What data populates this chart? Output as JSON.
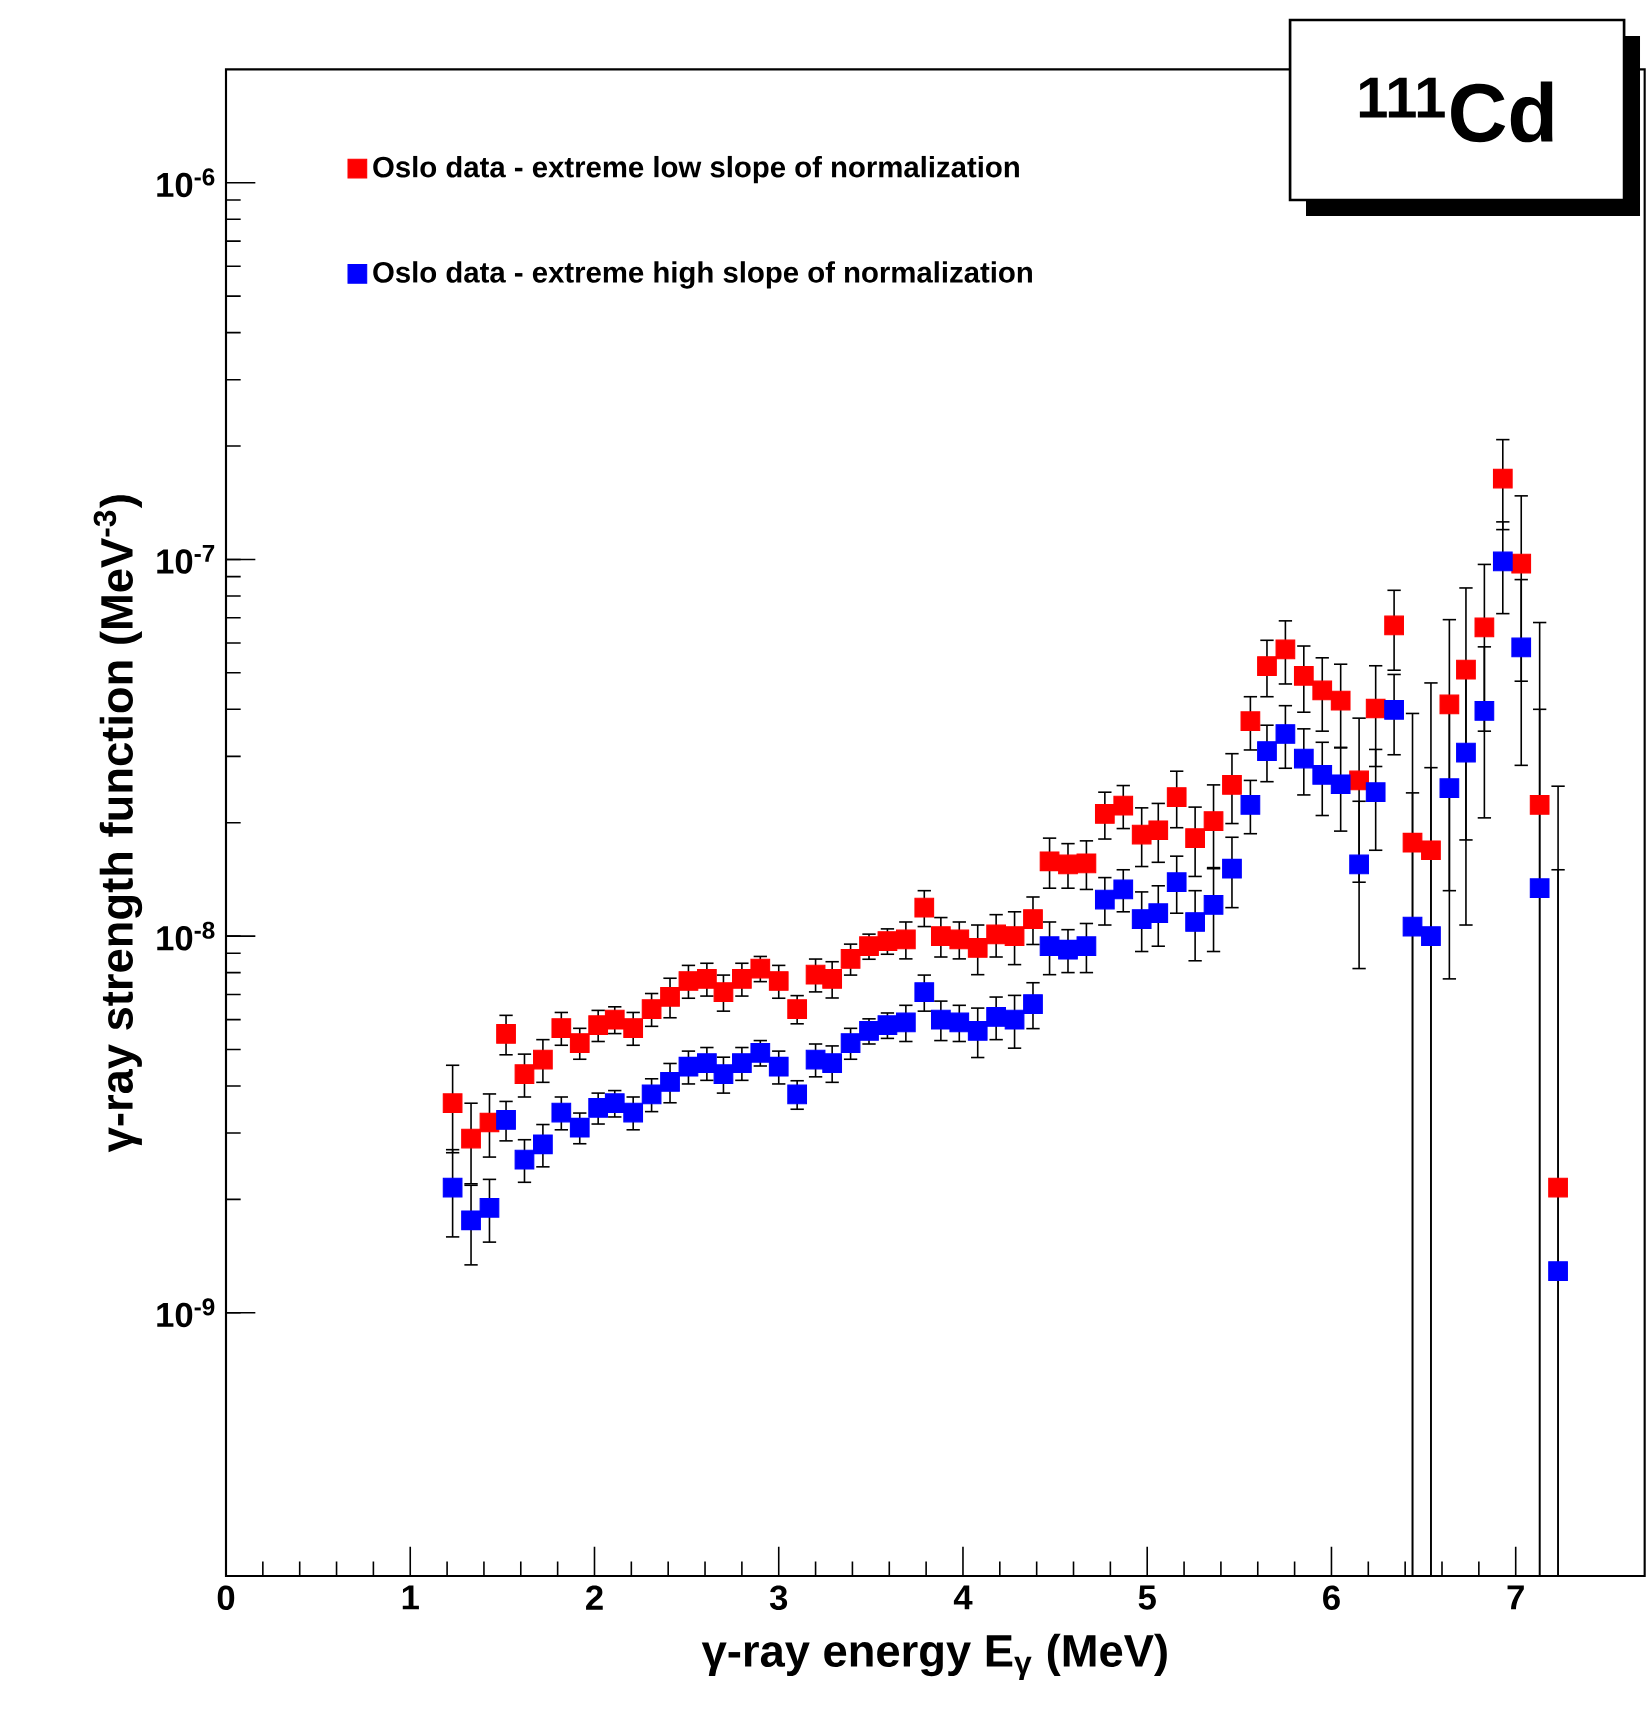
{
  "chart_data": {
    "type": "scatter",
    "title": "$^{111}$Cd",
    "xlabel": "γ-ray energy E$_{γ}$ (MeV)",
    "ylabel": "γ-ray strength function (MeV$^{-3}$)",
    "x": [
      1.23,
      1.33,
      1.43,
      1.52,
      1.62,
      1.72,
      1.82,
      1.92,
      2.02,
      2.11,
      2.21,
      2.31,
      2.41,
      2.51,
      2.61,
      2.7,
      2.8,
      2.9,
      3.0,
      3.1,
      3.2,
      3.29,
      3.39,
      3.49,
      3.59,
      3.69,
      3.79,
      3.88,
      3.98,
      4.08,
      4.18,
      4.28,
      4.38,
      4.47,
      4.57,
      4.67,
      4.77,
      4.87,
      4.97,
      5.06,
      5.16,
      5.26,
      5.36,
      5.46,
      5.56,
      5.65,
      5.75,
      5.85,
      5.95,
      6.05,
      6.15,
      6.24,
      6.34,
      6.44,
      6.54,
      6.64,
      6.73,
      6.83,
      6.93,
      7.03,
      7.13,
      7.23
    ],
    "series": [
      {
        "name": "Oslo data - extreme low slope of normalization",
        "color": "#ff0000",
        "values": [
          3.6e-09,
          2.9e-09,
          3.2e-09,
          5.5e-09,
          4.3e-09,
          4.7e-09,
          5.7e-09,
          5.2e-09,
          5.8e-09,
          6e-09,
          5.7e-09,
          6.4e-09,
          6.9e-09,
          7.6e-09,
          7.7e-09,
          7.1e-09,
          7.7e-09,
          8.2e-09,
          7.6e-09,
          6.4e-09,
          7.9e-09,
          7.7e-09,
          8.7e-09,
          9.4e-09,
          9.7e-09,
          9.8e-09,
          1.19e-08,
          1e-08,
          9.8e-09,
          9.3e-09,
          1.01e-08,
          1e-08,
          1.11e-08,
          1.58e-08,
          1.55e-08,
          1.56e-08,
          2.11e-08,
          2.22e-08,
          1.86e-08,
          1.91e-08,
          2.34e-08,
          1.82e-08,
          2.02e-08,
          2.52e-08,
          3.72e-08,
          5.21e-08,
          5.77e-08,
          4.91e-08,
          4.49e-08,
          4.22e-08,
          2.59e-08,
          4.02e-08,
          6.68e-08,
          1.77e-08,
          1.69e-08,
          4.12e-08,
          5.1e-08,
          6.6e-08,
          1.64e-07,
          9.75e-08,
          2.23e-08,
          2.15e-09
        ],
        "errors": [
          9.4e-10,
          7e-10,
          6.1e-10,
          6.6e-10,
          5.6e-10,
          6.1e-10,
          5.7e-10,
          4.9e-10,
          5.5e-10,
          4.9e-10,
          5.7e-10,
          6.4e-10,
          8.3e-10,
          7.6e-10,
          7.7e-10,
          7.8e-10,
          7.7e-10,
          6.3e-10,
          7.6e-10,
          5.5e-10,
          7.9e-10,
          8.5e-10,
          8.2e-10,
          7.2e-10,
          7.5e-10,
          1.1e-09,
          1.3e-09,
          1.2e-09,
          1.1e-09,
          1.4e-09,
          1.3e-09,
          1.6e-09,
          1.6e-09,
          2.4e-09,
          2.1e-09,
          2.3e-09,
          3e-09,
          2.9e-09,
          3.3e-09,
          3.4e-09,
          4e-09,
          3.8e-09,
          5e-09,
          5.3e-09,
          6e-09,
          8.9e-09,
          1.1e-08,
          9.8e-09,
          9.9e-09,
          1.05e-08,
          1.2e-08,
          1.2e-08,
          1.6e-08,
          [
            2e-10,
            3.9e-08
          ],
          [
            2e-10,
            4.7e-08
          ],
          2.8e-08,
          3.3e-08,
          3.1e-08,
          4.4e-08,
          5e-08,
          [
            2e-10,
            6.8e-08
          ],
          [
            2e-10,
            2.5e-08
          ]
        ]
      },
      {
        "name": "Oslo data - extreme high slope of normalization",
        "color": "#0000ff",
        "values": [
          2.15e-09,
          1.76e-09,
          1.9e-09,
          3.25e-09,
          2.55e-09,
          2.8e-09,
          3.4e-09,
          3.1e-09,
          3.5e-09,
          3.6e-09,
          3.4e-09,
          3.8e-09,
          4.1e-09,
          4.5e-09,
          4.6e-09,
          4.3e-09,
          4.6e-09,
          4.9e-09,
          4.5e-09,
          3.8e-09,
          4.7e-09,
          4.6e-09,
          5.2e-09,
          5.6e-09,
          5.8e-09,
          5.9e-09,
          7.1e-09,
          6e-09,
          5.9e-09,
          5.6e-09,
          6.1e-09,
          6e-09,
          6.6e-09,
          9.4e-09,
          9.2e-09,
          9.4e-09,
          1.25e-08,
          1.33e-08,
          1.11e-08,
          1.15e-08,
          1.39e-08,
          1.09e-08,
          1.21e-08,
          1.51e-08,
          2.23e-08,
          3.1e-08,
          3.44e-08,
          2.96e-08,
          2.68e-08,
          2.53e-08,
          1.55e-08,
          2.41e-08,
          3.99e-08,
          1.06e-08,
          1e-08,
          2.47e-08,
          3.07e-08,
          3.96e-08,
          9.88e-08,
          5.84e-08,
          1.34e-08,
          1.29e-09
        ],
        "errors": [
          5.6e-10,
          4.2e-10,
          3.6e-10,
          3.9e-10,
          3.3e-10,
          3.6e-10,
          3.4e-10,
          2.9e-10,
          3.3e-10,
          2.9e-10,
          3.4e-10,
          3.8e-10,
          4.9e-10,
          4.5e-10,
          4.6e-10,
          4.7e-10,
          4.6e-10,
          3.8e-10,
          4.5e-10,
          3.3e-10,
          4.7e-10,
          5.1e-10,
          4.9e-10,
          4.3e-10,
          4.5e-10,
          6.5e-10,
          7.8e-10,
          7.2e-10,
          6.5e-10,
          8.4e-10,
          7.9e-10,
          9.6e-10,
          9.2e-10,
          1.5e-09,
          1.2e-09,
          1.4e-09,
          1.8e-09,
          1.7e-09,
          2e-09,
          2.1e-09,
          2.4e-09,
          2.3e-09,
          3e-09,
          3.2e-09,
          3.6e-09,
          5.3e-09,
          6.5e-09,
          5.9e-09,
          5.9e-09,
          6.3e-09,
          7.3e-09,
          7.2e-09,
          9.6e-09,
          [
            2e-10,
            2.4e-08
          ],
          [
            2e-10,
            2.8e-08
          ],
          1.7e-08,
          2e-08,
          1.9e-08,
          2.7e-08,
          3e-08,
          [
            2e-10,
            4e-08
          ],
          [
            2e-10,
            1.5e-08
          ]
        ]
      }
    ],
    "xlim": [
      0,
      7.7
    ],
    "xticks": [
      0,
      1,
      2,
      3,
      4,
      5,
      6,
      7
    ],
    "ylim": [
      2e-10,
      2e-06
    ],
    "yticks": [
      {
        "value": 1e-09,
        "label": "10$^{-9}$"
      },
      {
        "value": 1e-08,
        "label": "10$^{-8}$"
      },
      {
        "value": 1e-07,
        "label": "10$^{-7}$"
      },
      {
        "value": 1e-06,
        "label": "10$^{-6}$"
      }
    ],
    "log": true,
    "marker": "square",
    "legend": "top left"
  }
}
